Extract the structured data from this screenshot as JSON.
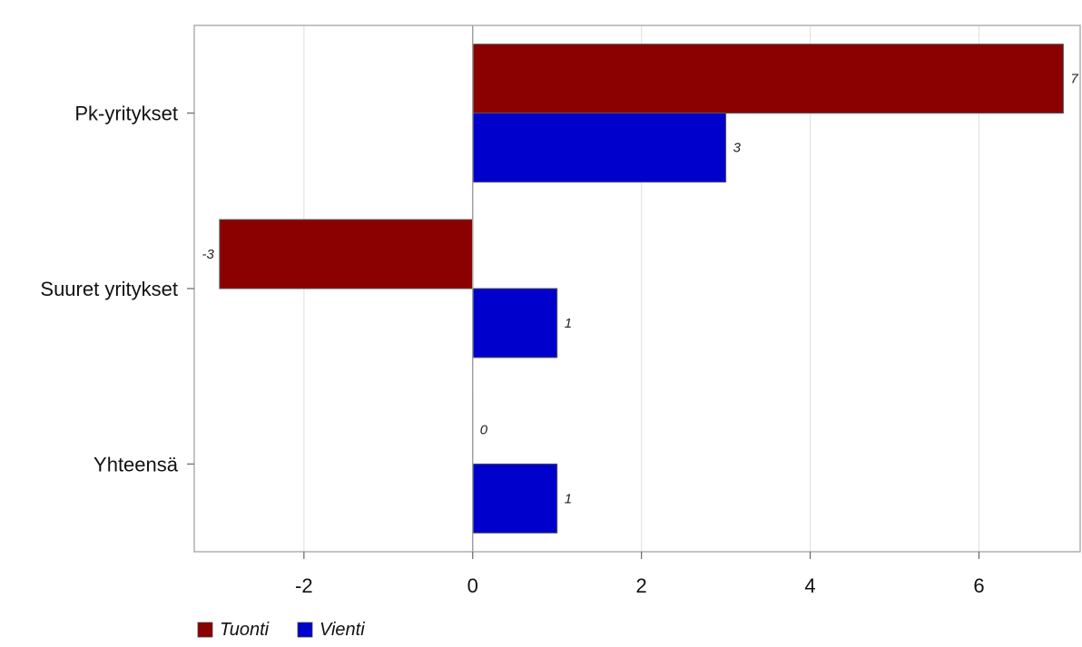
{
  "chart_data": {
    "type": "bar",
    "orientation": "horizontal",
    "categories": [
      "Pk-yritykset",
      "Suuret yritykset",
      "Yhteensä"
    ],
    "series": [
      {
        "name": "Tuonti",
        "color": "#8b0000",
        "values": [
          7,
          -3,
          0
        ],
        "labels": [
          "7",
          "-3",
          "0"
        ]
      },
      {
        "name": "Vienti",
        "color": "#0000cc",
        "values": [
          3,
          1,
          1
        ],
        "labels": [
          "3",
          "1",
          "1"
        ]
      }
    ],
    "xlim": [
      -3.3,
      7.2
    ],
    "xticks": [
      -2,
      0,
      2,
      4,
      6
    ],
    "xtick_labels": [
      "-2",
      "0",
      "2",
      "4",
      "6"
    ],
    "grid": "vertical",
    "legend": "bottom-left"
  }
}
